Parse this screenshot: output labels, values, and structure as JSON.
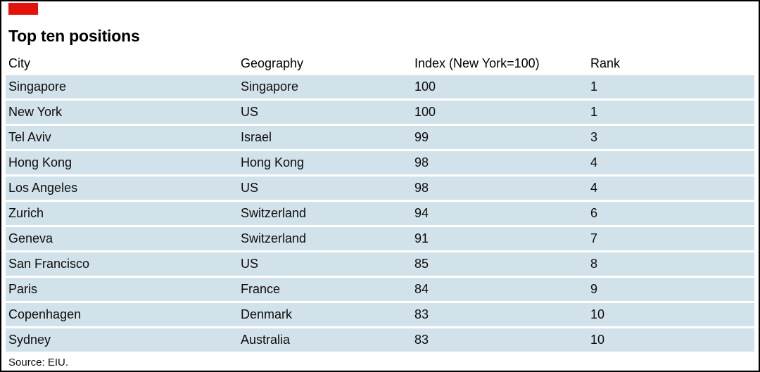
{
  "colors": {
    "brand_red": "#e3120b",
    "row_blue": "#d2e2ea"
  },
  "chart_data": {
    "type": "table",
    "title": "Top ten positions",
    "columns": [
      "City",
      "Geography",
      "Index (New York=100)",
      "Rank"
    ],
    "rows": [
      [
        "Singapore",
        "Singapore",
        100,
        1
      ],
      [
        "New York",
        "US",
        100,
        1
      ],
      [
        "Tel Aviv",
        "Israel",
        99,
        3
      ],
      [
        "Hong Kong",
        "Hong Kong",
        98,
        4
      ],
      [
        "Los Angeles",
        "US",
        98,
        4
      ],
      [
        "Zurich",
        "Switzerland",
        94,
        6
      ],
      [
        "Geneva",
        "Switzerland",
        91,
        7
      ],
      [
        "San Francisco",
        "US",
        85,
        8
      ],
      [
        "Paris",
        "France",
        84,
        9
      ],
      [
        "Copenhagen",
        "Denmark",
        83,
        10
      ],
      [
        "Sydney",
        "Australia",
        83,
        10
      ]
    ],
    "source": "Source: EIU."
  }
}
